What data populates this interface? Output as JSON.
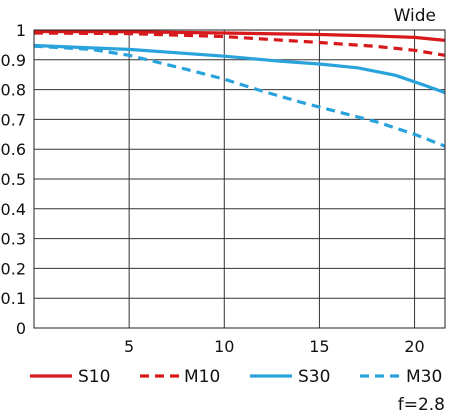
{
  "chart_data": {
    "type": "line",
    "corner_label": "Wide",
    "footnote": "f=2.8",
    "xlabel": "",
    "ylabel": "",
    "xlim": [
      0,
      21.6
    ],
    "ylim": [
      0,
      1
    ],
    "xticks": [
      5,
      10,
      15,
      20
    ],
    "xtick_labels": [
      "5",
      "10",
      "15",
      "20"
    ],
    "yticks": [
      0,
      0.1,
      0.2,
      0.3,
      0.4,
      0.5,
      0.6,
      0.7,
      0.8,
      0.9,
      1
    ],
    "ytick_labels": [
      "0",
      "0.1",
      "0.2",
      "0.3",
      "0.4",
      "0.5",
      "0.6",
      "0.7",
      "0.8",
      "0.9",
      "1"
    ],
    "grid": true,
    "legend_position": "bottom",
    "series": [
      {
        "name": "S10",
        "color": "#d7191c",
        "dashed": false,
        "points": [
          [
            0,
            0.995
          ],
          [
            5,
            0.994
          ],
          [
            10,
            0.99
          ],
          [
            15,
            0.985
          ],
          [
            18,
            0.98
          ],
          [
            20,
            0.975
          ],
          [
            21.6,
            0.965
          ]
        ]
      },
      {
        "name": "M10",
        "color": "#d7191c",
        "dashed": true,
        "points": [
          [
            0,
            0.99
          ],
          [
            5,
            0.988
          ],
          [
            10,
            0.978
          ],
          [
            15,
            0.958
          ],
          [
            18,
            0.945
          ],
          [
            20,
            0.932
          ],
          [
            21.6,
            0.915
          ]
        ]
      },
      {
        "name": "S30",
        "color": "#2aa3dc",
        "dashed": false,
        "points": [
          [
            0,
            0.948
          ],
          [
            5,
            0.935
          ],
          [
            10,
            0.912
          ],
          [
            13,
            0.895
          ],
          [
            15,
            0.886
          ],
          [
            17,
            0.873
          ],
          [
            19,
            0.848
          ],
          [
            20.5,
            0.815
          ],
          [
            21.6,
            0.79
          ]
        ]
      },
      {
        "name": "M30",
        "color": "#2aa3dc",
        "dashed": true,
        "points": [
          [
            0,
            0.946
          ],
          [
            3,
            0.935
          ],
          [
            5,
            0.915
          ],
          [
            8,
            0.868
          ],
          [
            10,
            0.835
          ],
          [
            12,
            0.795
          ],
          [
            14,
            0.758
          ],
          [
            16,
            0.725
          ],
          [
            18,
            0.692
          ],
          [
            20,
            0.65
          ],
          [
            21.6,
            0.61
          ]
        ]
      }
    ]
  }
}
